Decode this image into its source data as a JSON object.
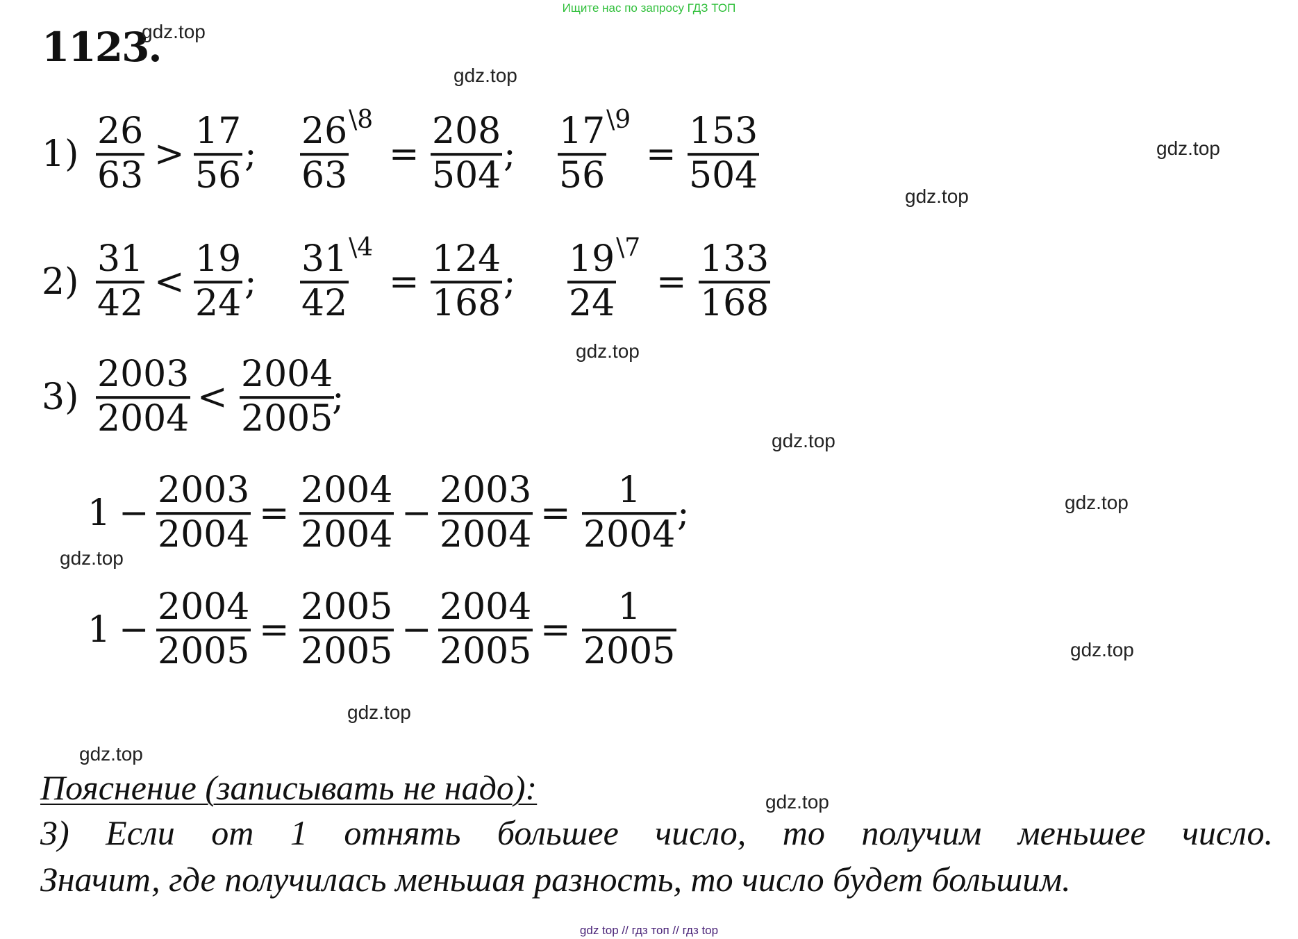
{
  "banner_top": "Ищите нас по запросу ГДЗ ТОП",
  "banner_bottom": "gdz top  //  гдз топ  //  гдз top",
  "task_number": "1123.",
  "watermark": "gdz.top",
  "rows": [
    {
      "items": [
        {
          "t": "1)"
        },
        {
          "n": "26",
          "d": "63"
        },
        {
          "t": ">"
        },
        {
          "n": "17",
          "d": "56"
        },
        {
          "t": ";"
        },
        {
          "n": "26",
          "d": "63",
          "s": "\\8"
        },
        {
          "t": "="
        },
        {
          "n": "208",
          "d": "504"
        },
        {
          "t": ";"
        },
        {
          "n": "17",
          "d": "56",
          "s": "\\9"
        },
        {
          "t": "="
        },
        {
          "n": "153",
          "d": "504"
        }
      ]
    },
    {
      "items": [
        {
          "t": "2)"
        },
        {
          "n": "31",
          "d": "42"
        },
        {
          "t": "<"
        },
        {
          "n": "19",
          "d": "24"
        },
        {
          "t": ";"
        },
        {
          "n": "31",
          "d": "42",
          "s": "\\4"
        },
        {
          "t": "="
        },
        {
          "n": "124",
          "d": "168"
        },
        {
          "t": ";"
        },
        {
          "n": "19",
          "d": "24",
          "s": "\\7"
        },
        {
          "t": "="
        },
        {
          "n": "133",
          "d": "168"
        }
      ]
    },
    {
      "items": [
        {
          "t": "3)"
        },
        {
          "n": "2003",
          "d": "2004"
        },
        {
          "t": "<"
        },
        {
          "n": "2004",
          "d": "2005"
        },
        {
          "t": ";"
        }
      ]
    },
    {
      "items": [
        {
          "t": "1"
        },
        {
          "t": "−"
        },
        {
          "n": "2003",
          "d": "2004"
        },
        {
          "t": "="
        },
        {
          "n": "2004",
          "d": "2004"
        },
        {
          "t": "−"
        },
        {
          "n": "2003",
          "d": "2004"
        },
        {
          "t": "="
        },
        {
          "n": "1",
          "d": "2004"
        },
        {
          "t": ";"
        }
      ]
    },
    {
      "items": [
        {
          "t": "1"
        },
        {
          "t": "−"
        },
        {
          "n": "2004",
          "d": "2005"
        },
        {
          "t": "="
        },
        {
          "n": "2005",
          "d": "2005"
        },
        {
          "t": "−"
        },
        {
          "n": "2004",
          "d": "2005"
        },
        {
          "t": "="
        },
        {
          "n": "1",
          "d": "2005"
        }
      ]
    }
  ],
  "explanation": {
    "heading": "Пояснение (записывать не надо):",
    "line1": "3) Если от 1 отнять большее число, то получим меньшее число.",
    "line2": "Значит, где получилась меньшая разность, то число будет большим."
  }
}
